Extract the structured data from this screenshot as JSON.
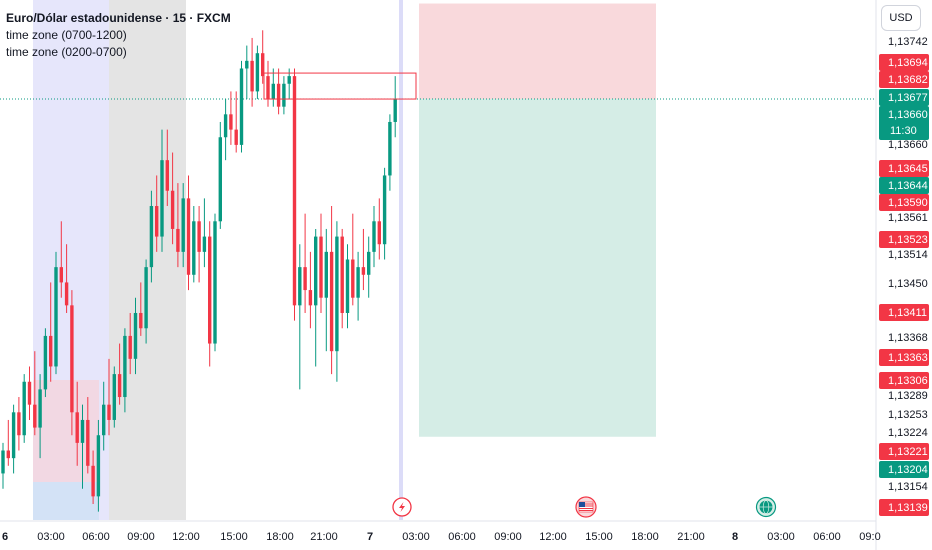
{
  "legend": {
    "title": "Euro/Dólar estadounidense · 15 · FXCM",
    "line1": "time zone (0700-1200)",
    "line2": "time zone (0200-0700)"
  },
  "currency_button": "USD",
  "colors": {
    "up": "#089981",
    "down": "#f23645",
    "session_blue": "#e6e6fb",
    "session_gray": "#e4e4e4",
    "stop_zone": "#f9d9dc",
    "target_zone": "#d5ede6",
    "fvg_box": "#f23645"
  },
  "icons": [
    "lightning-event-icon",
    "us-flag-event-icon",
    "globe-event-icon"
  ],
  "chart_data": {
    "type": "candlestick",
    "title": "Euro/Dólar estadounidense · 15 · FXCM",
    "price_axis": {
      "ticks": [
        "1,13742",
        "1,13660",
        "1,13561",
        "1,13514",
        "1,13450",
        "1,13368",
        "1,13289",
        "1,13253",
        "1,13224",
        "1,13154"
      ],
      "ylim": [
        1.1312,
        1.1376
      ]
    },
    "time_axis": {
      "ticks": [
        "6",
        "03:00",
        "06:00",
        "09:00",
        "12:00",
        "15:00",
        "18:00",
        "21:00",
        "7",
        "03:00",
        "06:00",
        "09:00",
        "12:00",
        "15:00",
        "18:00",
        "21:00",
        "8",
        "03:00",
        "06:00",
        "09:0"
      ]
    },
    "price_badges": [
      {
        "value": "1,13694",
        "color": "down"
      },
      {
        "value": "1,13682",
        "color": "down"
      },
      {
        "value": "1,13677",
        "color": "up"
      },
      {
        "value": "1,13660",
        "sub": "11:30",
        "color": "up"
      },
      {
        "value": "1,13645",
        "color": "down"
      },
      {
        "value": "1,13644",
        "color": "up"
      },
      {
        "value": "1,13590",
        "color": "down"
      },
      {
        "value": "1,13523",
        "color": "down"
      },
      {
        "value": "1,13411",
        "color": "down"
      },
      {
        "value": "1,13363",
        "color": "down"
      },
      {
        "value": "1,13306",
        "color": "down"
      },
      {
        "value": "1,13221",
        "color": "down"
      },
      {
        "value": "1,13204",
        "color": "up"
      },
      {
        "value": "1,13139",
        "color": "down"
      }
    ],
    "current_price": 1.1366,
    "position": {
      "entry": 1.1366,
      "stop": 1.13785,
      "target": 1.13218
    },
    "fvg_box": {
      "top": 1.13694,
      "bottom": 1.1366
    },
    "candles": [
      [
        1.1317,
        1.1321,
        1.1315,
        1.132
      ],
      [
        1.132,
        1.1324,
        1.1318,
        1.1319
      ],
      [
        1.1319,
        1.1326,
        1.1317,
        1.1325
      ],
      [
        1.1325,
        1.1327,
        1.132,
        1.1322
      ],
      [
        1.1322,
        1.133,
        1.1321,
        1.1329
      ],
      [
        1.1329,
        1.1331,
        1.1324,
        1.1326
      ],
      [
        1.1326,
        1.1333,
        1.1322,
        1.1323
      ],
      [
        1.1323,
        1.133,
        1.1319,
        1.1328
      ],
      [
        1.1328,
        1.1336,
        1.1327,
        1.1335
      ],
      [
        1.1335,
        1.1342,
        1.1329,
        1.1331
      ],
      [
        1.1331,
        1.1346,
        1.133,
        1.1344
      ],
      [
        1.1344,
        1.135,
        1.134,
        1.1342
      ],
      [
        1.1342,
        1.1347,
        1.1338,
        1.1339
      ],
      [
        1.1339,
        1.1341,
        1.1322,
        1.1325
      ],
      [
        1.1325,
        1.1329,
        1.1318,
        1.1321
      ],
      [
        1.1321,
        1.1326,
        1.1315,
        1.1324
      ],
      [
        1.1324,
        1.1327,
        1.1317,
        1.1318
      ],
      [
        1.1318,
        1.132,
        1.1313,
        1.1314
      ],
      [
        1.1314,
        1.1324,
        1.1312,
        1.1322
      ],
      [
        1.1322,
        1.1329,
        1.132,
        1.1326
      ],
      [
        1.1326,
        1.1332,
        1.1322,
        1.1324
      ],
      [
        1.1324,
        1.1331,
        1.1323,
        1.133
      ],
      [
        1.133,
        1.1334,
        1.1326,
        1.1327
      ],
      [
        1.1327,
        1.1336,
        1.1325,
        1.1335
      ],
      [
        1.1335,
        1.1338,
        1.133,
        1.1332
      ],
      [
        1.1332,
        1.134,
        1.133,
        1.1338
      ],
      [
        1.1338,
        1.1342,
        1.1335,
        1.1336
      ],
      [
        1.1336,
        1.1345,
        1.1334,
        1.1344
      ],
      [
        1.1344,
        1.1354,
        1.1342,
        1.1352
      ],
      [
        1.1352,
        1.1356,
        1.1346,
        1.1348
      ],
      [
        1.1348,
        1.1362,
        1.1346,
        1.1358
      ],
      [
        1.1358,
        1.1362,
        1.1352,
        1.1354
      ],
      [
        1.1354,
        1.1359,
        1.1347,
        1.1349
      ],
      [
        1.1349,
        1.1355,
        1.1344,
        1.1346
      ],
      [
        1.1346,
        1.1355,
        1.1344,
        1.1353
      ],
      [
        1.1353,
        1.1356,
        1.1341,
        1.1343
      ],
      [
        1.1343,
        1.1352,
        1.1342,
        1.135
      ],
      [
        1.135,
        1.1352,
        1.1342,
        1.1346
      ],
      [
        1.1346,
        1.1353,
        1.1344,
        1.1348
      ],
      [
        1.1348,
        1.135,
        1.1331,
        1.1334
      ],
      [
        1.1334,
        1.1351,
        1.1333,
        1.135
      ],
      [
        1.135,
        1.1363,
        1.1349,
        1.1361
      ],
      [
        1.1361,
        1.1366,
        1.1358,
        1.1364
      ],
      [
        1.1364,
        1.1367,
        1.136,
        1.1362
      ],
      [
        1.1362,
        1.1367,
        1.1359,
        1.136
      ],
      [
        1.136,
        1.1371,
        1.1359,
        1.137
      ],
      [
        1.137,
        1.1373,
        1.1366,
        1.1371
      ],
      [
        1.1371,
        1.1374,
        1.1365,
        1.1367
      ],
      [
        1.1367,
        1.1373,
        1.1366,
        1.1372
      ],
      [
        1.1372,
        1.1375,
        1.1368,
        1.1369
      ],
      [
        1.1369,
        1.1371,
        1.1365,
        1.1366
      ],
      [
        1.1366,
        1.137,
        1.1365,
        1.1368
      ],
      [
        1.1368,
        1.137,
        1.1364,
        1.1365
      ],
      [
        1.1365,
        1.1369,
        1.1364,
        1.1368
      ],
      [
        1.1368,
        1.137,
        1.1366,
        1.1369
      ],
      [
        1.1369,
        1.137,
        1.1337,
        1.1339
      ],
      [
        1.1339,
        1.1347,
        1.1328,
        1.1344
      ],
      [
        1.1344,
        1.1351,
        1.1338,
        1.1341
      ],
      [
        1.1341,
        1.1346,
        1.1336,
        1.1339
      ],
      [
        1.1339,
        1.1349,
        1.1331,
        1.1348
      ],
      [
        1.1348,
        1.1351,
        1.1338,
        1.134
      ],
      [
        1.134,
        1.1349,
        1.1333,
        1.1346
      ],
      [
        1.1346,
        1.1352,
        1.133,
        1.1333
      ],
      [
        1.1333,
        1.135,
        1.1329,
        1.1348
      ],
      [
        1.1348,
        1.1349,
        1.1336,
        1.1338
      ],
      [
        1.1338,
        1.1347,
        1.1336,
        1.1345
      ],
      [
        1.1345,
        1.1351,
        1.1339,
        1.134
      ],
      [
        1.134,
        1.1346,
        1.1337,
        1.1344
      ],
      [
        1.1344,
        1.1349,
        1.1341,
        1.1343
      ],
      [
        1.1343,
        1.1348,
        1.134,
        1.1346
      ],
      [
        1.1346,
        1.1352,
        1.1344,
        1.135
      ],
      [
        1.135,
        1.1353,
        1.1345,
        1.1347
      ],
      [
        1.1347,
        1.1357,
        1.1345,
        1.1356
      ],
      [
        1.1356,
        1.1364,
        1.1354,
        1.1363
      ],
      [
        1.1363,
        1.1369,
        1.1361,
        1.1366
      ]
    ]
  }
}
